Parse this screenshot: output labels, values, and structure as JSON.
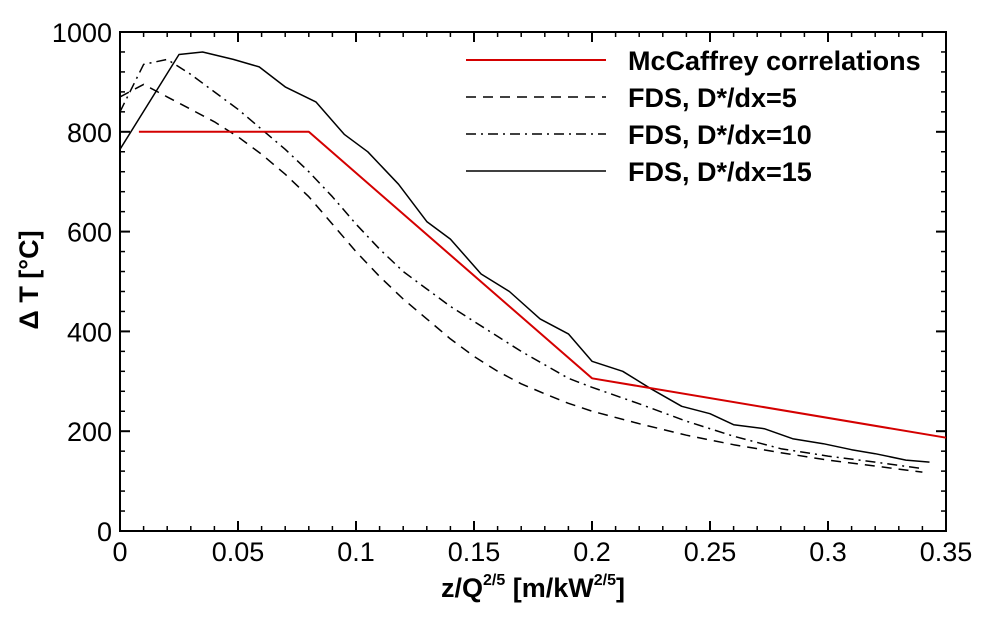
{
  "chart_data": {
    "type": "line",
    "xlabel_base": "z/Q",
    "xlabel_exp": "2/5",
    "xlabel_unit_base": " [m/kW",
    "xlabel_unit_exp": "2/5",
    "xlabel_unit_close": "]",
    "ylabel": "Δ T [°C]",
    "xlim": [
      0,
      0.35
    ],
    "ylim": [
      0,
      1000
    ],
    "xticks": [
      0,
      0.05,
      0.1,
      0.15,
      0.2,
      0.25,
      0.3,
      0.35
    ],
    "xtick_labels": [
      "0",
      "0.05",
      "0.1",
      "0.15",
      "0.2",
      "0.25",
      "0.3",
      "0.35"
    ],
    "yticks": [
      0,
      200,
      400,
      600,
      800,
      1000
    ],
    "ytick_labels": [
      "0",
      "200",
      "400",
      "600",
      "800",
      "1000"
    ],
    "legend_position": "top-right",
    "series": [
      {
        "name": "McCaffrey correlations",
        "color": "#d40000",
        "dash": "solid",
        "x": [
          0.008,
          0.08,
          0.2,
          0.35
        ],
        "y": [
          800,
          800,
          306,
          187
        ]
      },
      {
        "name": "FDS, D*/dx=5",
        "color": "#000000",
        "dash": "dashed",
        "x": [
          0,
          0.01,
          0.02,
          0.03,
          0.04,
          0.05,
          0.06,
          0.07,
          0.08,
          0.09,
          0.1,
          0.11,
          0.12,
          0.13,
          0.14,
          0.15,
          0.16,
          0.17,
          0.18,
          0.19,
          0.2,
          0.22,
          0.24,
          0.26,
          0.28,
          0.3,
          0.32,
          0.34
        ],
        "y": [
          870,
          895,
          870,
          845,
          820,
          790,
          755,
          715,
          670,
          615,
          560,
          510,
          465,
          425,
          385,
          350,
          320,
          295,
          275,
          256,
          240,
          215,
          192,
          173,
          157,
          142,
          130,
          118
        ]
      },
      {
        "name": "FDS, D*/dx=10",
        "color": "#000000",
        "dash": "dashdot",
        "x": [
          0,
          0.01,
          0.02,
          0.03,
          0.04,
          0.05,
          0.06,
          0.07,
          0.08,
          0.09,
          0.1,
          0.11,
          0.12,
          0.13,
          0.14,
          0.15,
          0.16,
          0.17,
          0.18,
          0.19,
          0.2,
          0.22,
          0.24,
          0.26,
          0.28,
          0.3,
          0.32,
          0.34
        ],
        "y": [
          840,
          935,
          945,
          915,
          880,
          845,
          805,
          765,
          720,
          670,
          615,
          565,
          520,
          485,
          450,
          420,
          390,
          360,
          333,
          306,
          288,
          255,
          220,
          190,
          165,
          150,
          138,
          125
        ]
      },
      {
        "name": "FDS, D*/dx=15",
        "color": "#000000",
        "dash": "solid",
        "x": [
          0,
          0.025,
          0.035,
          0.048,
          0.059,
          0.07,
          0.083,
          0.095,
          0.105,
          0.118,
          0.13,
          0.14,
          0.153,
          0.165,
          0.178,
          0.19,
          0.2,
          0.213,
          0.225,
          0.238,
          0.25,
          0.26,
          0.273,
          0.285,
          0.298,
          0.31,
          0.32,
          0.333,
          0.343
        ],
        "y": [
          765,
          955,
          960,
          945,
          930,
          890,
          860,
          795,
          760,
          695,
          620,
          585,
          515,
          480,
          425,
          395,
          340,
          320,
          285,
          250,
          235,
          213,
          205,
          185,
          175,
          163,
          155,
          142,
          138
        ]
      }
    ]
  }
}
